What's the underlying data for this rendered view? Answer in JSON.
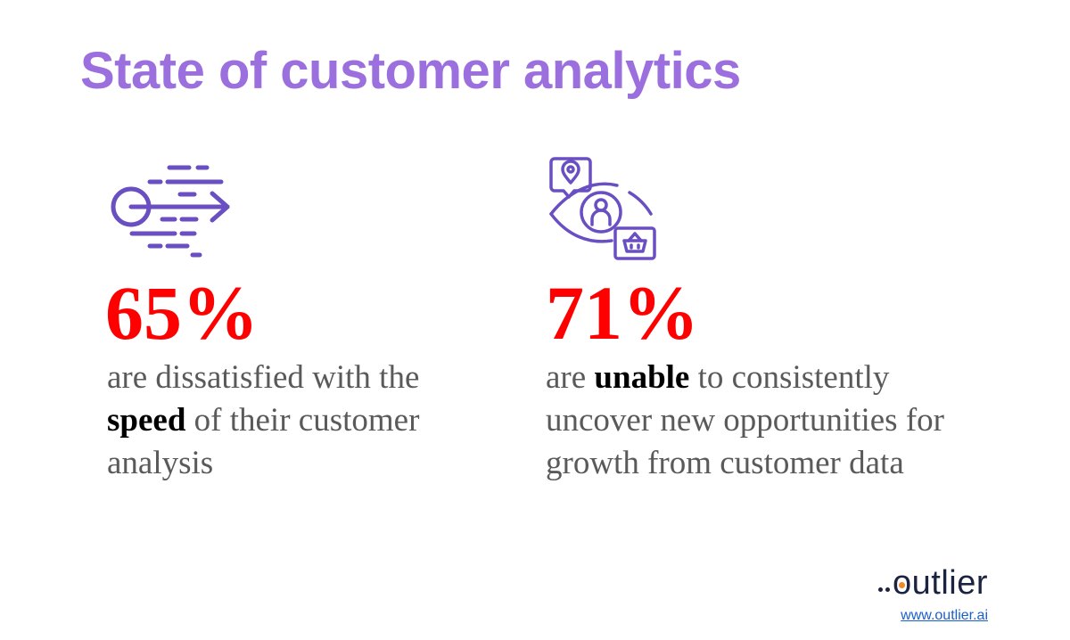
{
  "title": "State of customer analytics",
  "colors": {
    "title": "#9b6fdd",
    "stat": "#ff0000",
    "icon": "#6a4fc3",
    "text": "#5a5a5a",
    "logo": "#1c2341",
    "logo_accent": "#f08a24",
    "link": "#1a5fcf"
  },
  "stats": [
    {
      "icon": "speed-arrow-icon",
      "value": "65%",
      "text_before": "are dissatisfied with the ",
      "bold": "speed",
      "text_after": " of their customer analysis"
    },
    {
      "icon": "eye-customer-insight-icon",
      "value": "71%",
      "text_before": "are ",
      "bold": "unable",
      "text_after": " to consistently uncover new opportunities for growth from customer data"
    }
  ],
  "logo": {
    "text_prefix": "",
    "text": "outlier"
  },
  "link": "www.outlier.ai"
}
